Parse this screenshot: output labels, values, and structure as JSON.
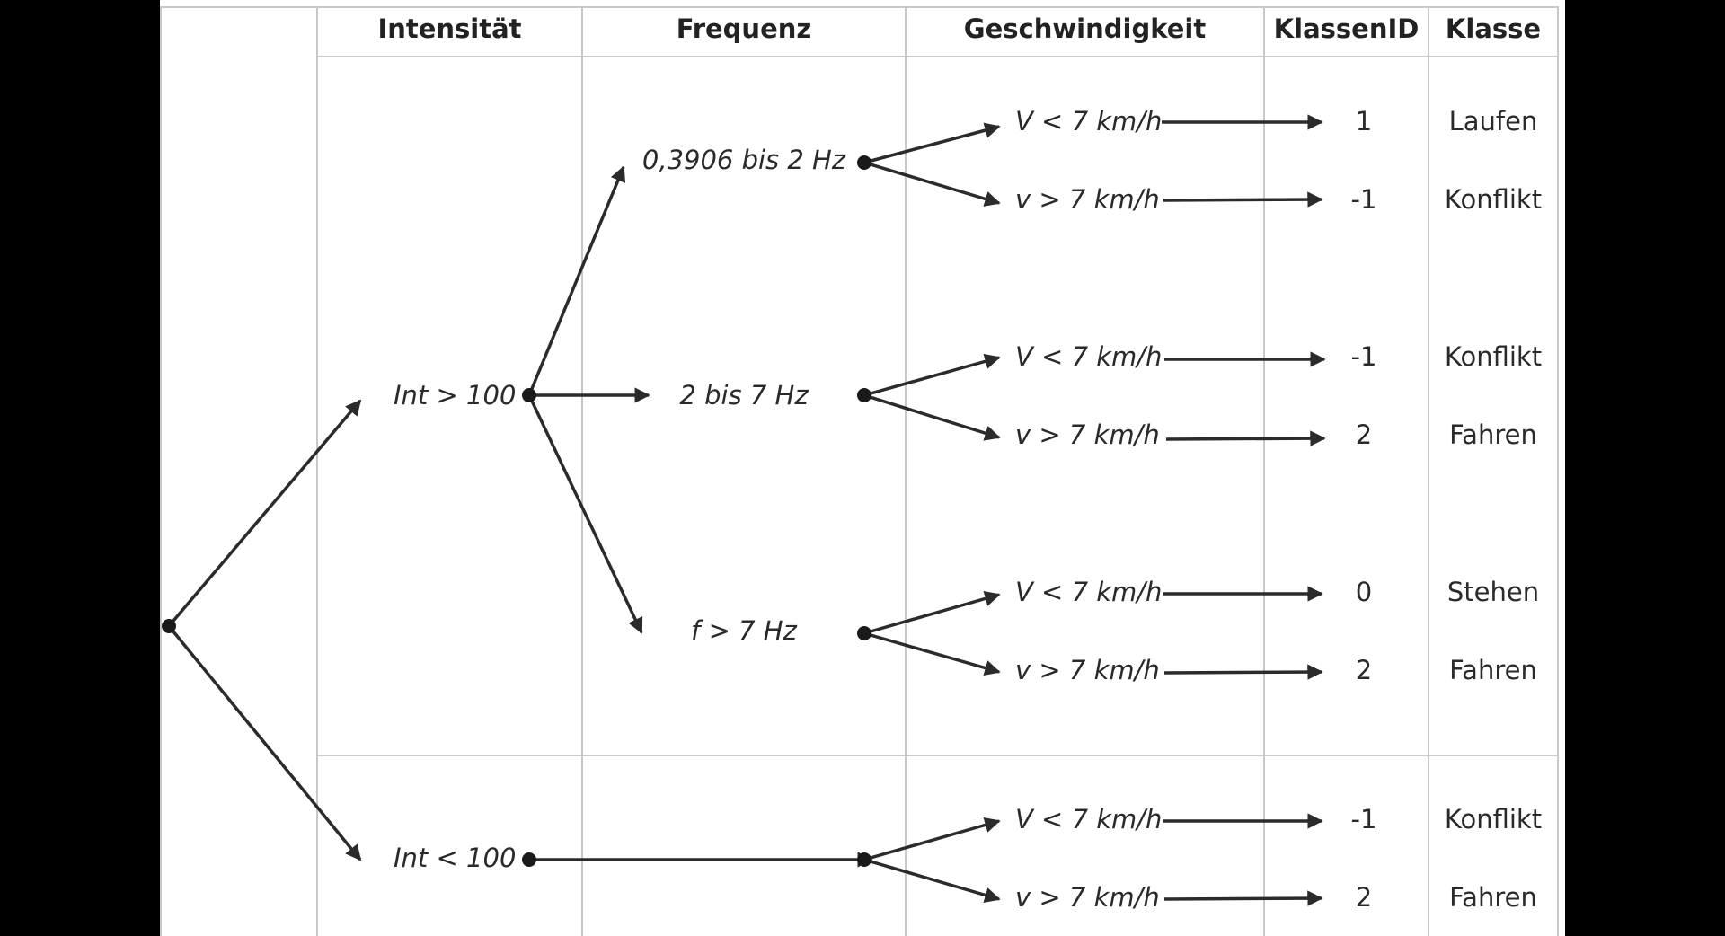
{
  "headers": {
    "intensity": "Intensität",
    "frequency": "Frequenz",
    "speed": "Geschwindigkeit",
    "class_id": "KlassenID",
    "class": "Klasse"
  },
  "intensity_nodes": [
    "Int > 100",
    "Int < 100"
  ],
  "frequency_nodes": [
    "0,3906 bis 2 Hz",
    "2 bis 7 Hz",
    "f > 7 Hz"
  ],
  "leaves": [
    {
      "speed": "V < 7 km/h",
      "class_id": "1",
      "class": "Laufen"
    },
    {
      "speed": "v > 7 km/h",
      "class_id": "-1",
      "class": "Konflikt"
    },
    {
      "speed": "V < 7 km/h",
      "class_id": "-1",
      "class": "Konflikt"
    },
    {
      "speed": "v > 7 km/h",
      "class_id": "2",
      "class": "Fahren"
    },
    {
      "speed": "V < 7 km/h",
      "class_id": "0",
      "class": "Stehen"
    },
    {
      "speed": "v > 7 km/h",
      "class_id": "2",
      "class": "Fahren"
    },
    {
      "speed": "V < 7 km/h",
      "class_id": "-1",
      "class": "Konflikt"
    },
    {
      "speed": "v > 7 km/h",
      "class_id": "2",
      "class": "Fahren"
    }
  ],
  "colors": {
    "line": "#2b2b2b",
    "grid": "#c8c8c8",
    "background": "#ffffff",
    "frame": "#000000"
  }
}
